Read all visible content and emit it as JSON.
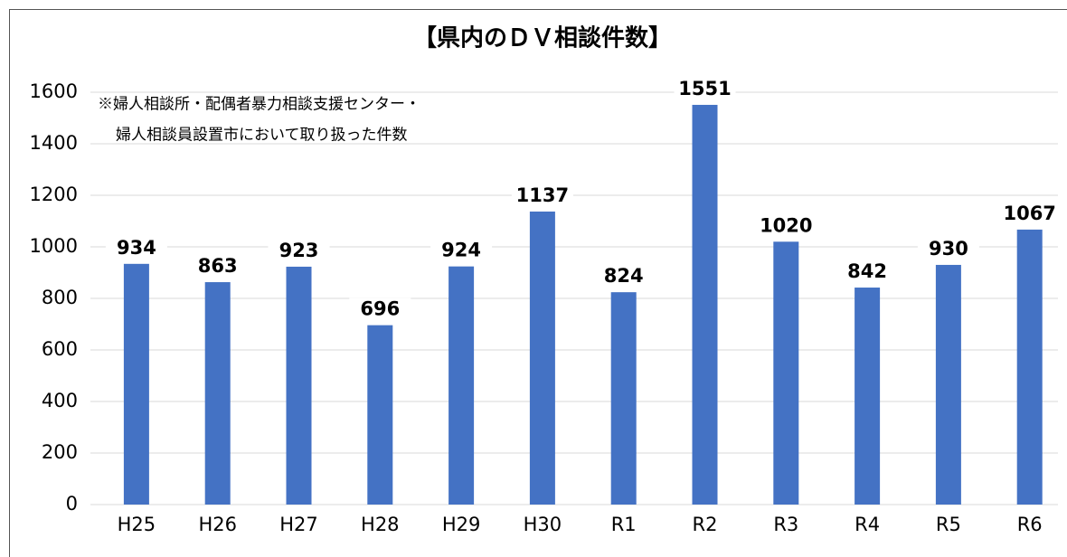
{
  "chart_data": {
    "type": "bar",
    "title": "【県内のＤＶ相談件数】",
    "annotations": [
      "※婦人相談所・配偶者暴力相談支援センター・",
      "婦人相談員設置市において取り扱った件数"
    ],
    "categories": [
      "H25",
      "H26",
      "H27",
      "H28",
      "H29",
      "H30",
      "R1",
      "R2",
      "R3",
      "R4",
      "R5",
      "R6"
    ],
    "values": [
      934,
      863,
      923,
      696,
      924,
      1137,
      824,
      1551,
      1020,
      842,
      930,
      1067
    ],
    "color": "#4472c4",
    "ylim": [
      0,
      1600
    ],
    "yticks": [
      0,
      200,
      400,
      600,
      800,
      1000,
      1200,
      1400,
      1600
    ],
    "grid": true
  }
}
